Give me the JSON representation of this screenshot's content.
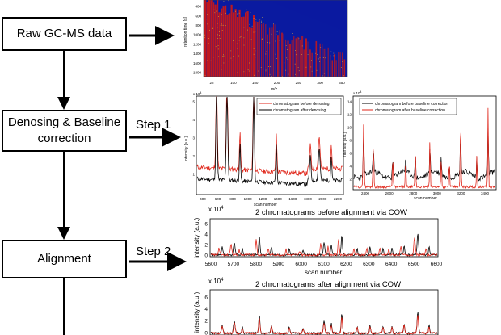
{
  "flow": {
    "raw": "Raw GC-MS data",
    "denoise": "Denosing & Baseline correction",
    "align": "Alignment",
    "step1": "Step 1",
    "step2": "Step 2"
  },
  "heatmap": {
    "ylabel": "retention time [s]",
    "xlabel": "m/z",
    "yticks": [
      "400",
      "600",
      "800",
      "1000",
      "1200",
      "1400",
      "1600",
      "1800"
    ],
    "xticks": [
      "25",
      "100",
      "150",
      "200",
      "250",
      "300",
      "350"
    ],
    "colors": {
      "bg": "#0a1aa0",
      "trace": "#c81818",
      "speckle": "#e8c040"
    }
  },
  "plot_a": {
    "ylabel": "intensity [a.u.]",
    "xlabel": "scan number",
    "legend": [
      "chromatogram before denosing",
      "chromatogram after denosing"
    ],
    "exp": "x 10",
    "yticks": [
      "1",
      "2",
      "3",
      "4",
      "5"
    ],
    "xticks": [
      "400",
      "600",
      "800",
      "1000",
      "1200",
      "1400",
      "1600",
      "1800",
      "2000",
      "2200"
    ]
  },
  "plot_b": {
    "ylabel": "intensity [a.u.]",
    "xlabel": "scan number",
    "legend": [
      "chromatogram before baseline correction",
      "chromatogram after baseline correction"
    ],
    "exp": "x 10",
    "yticks": [
      "2",
      "4",
      "6",
      "8",
      "10",
      "12",
      "14"
    ],
    "xticks": [
      "2400",
      "2600",
      "2800",
      "3000",
      "3200",
      "3400"
    ]
  },
  "plot_c": {
    "title": "2 chromatograms before alignment via COW",
    "ylabel": "intensity (a.u.)",
    "xlabel": "scan number",
    "exp": "x 10",
    "yticks": [
      "0",
      "2",
      "4",
      "6"
    ],
    "xticks": [
      "5600",
      "5700",
      "5800",
      "5900",
      "6000",
      "6100",
      "6200",
      "6300",
      "6400",
      "6500",
      "6600"
    ]
  },
  "plot_d": {
    "title": "2 chromatograms after alignment via COW",
    "ylabel": "intensity (a.u.)",
    "exp": "x 10",
    "yticks": [
      "0",
      "2",
      "4",
      "6"
    ]
  },
  "colors": {
    "red": "#e0261a",
    "black": "#000000"
  }
}
